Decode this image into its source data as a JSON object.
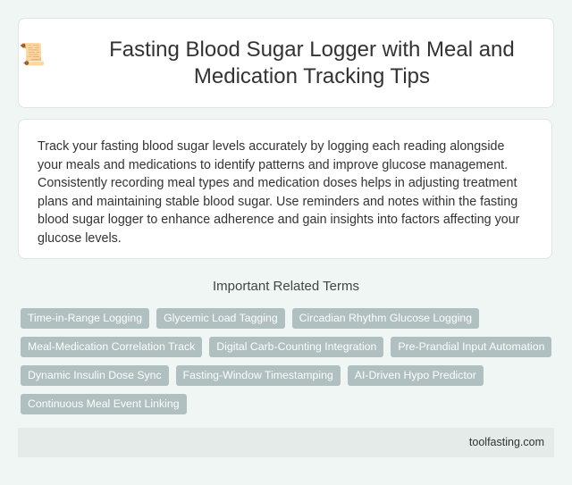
{
  "header": {
    "icon": "scroll-document-icon",
    "title": "Fasting Blood Sugar Logger with Meal and Medication Tracking Tips"
  },
  "description": "Track your fasting blood sugar levels accurately by logging each reading alongside your meals and medications to identify patterns and improve glucose management. Consistently recording meal types and medication doses helps in adjusting treatment plans and maintaining stable blood sugar. Use reminders and notes within the fasting blood sugar logger to enhance adherence and gain insights into factors affecting your glucose levels.",
  "terms": {
    "title": "Important Related Terms",
    "items": [
      "Time-in-Range Logging",
      "Glycemic Load Tagging",
      "Circadian Rhythm Glucose Logging",
      "Meal-Medication Correlation Track",
      "Digital Carb-Counting Integration",
      "Pre-Prandial Input Automation",
      "Dynamic Insulin Dose Sync",
      "Fasting-Window Timestamping",
      "AI-Driven Hypo Predictor",
      "Continuous Meal Event Linking"
    ]
  },
  "footer": {
    "site": "toolfasting.com"
  },
  "colors": {
    "tag_bg": "#b0bfbf",
    "page_bg": "#f0f6f4",
    "footer_bg": "#e4ebe8"
  }
}
